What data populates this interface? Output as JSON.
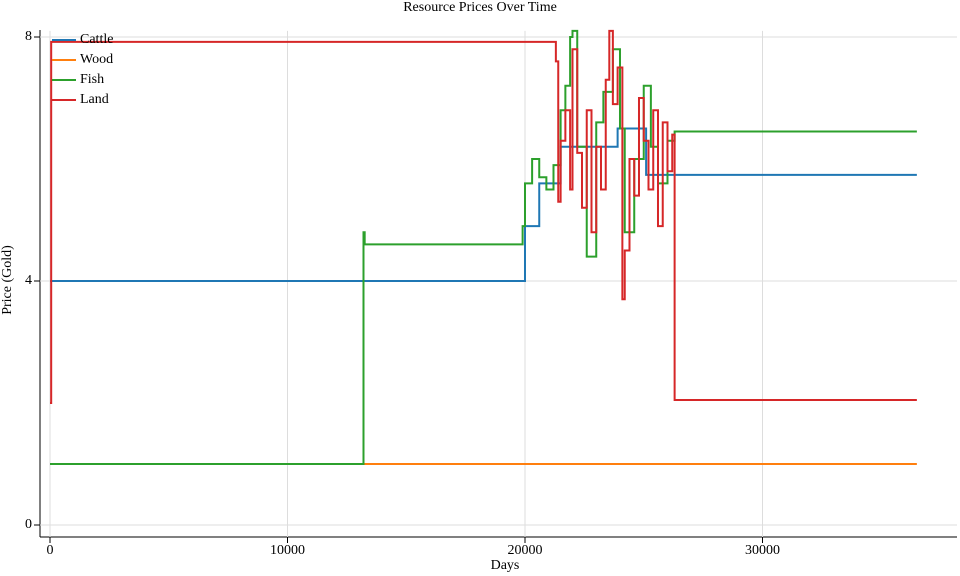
{
  "chart_data": {
    "type": "line",
    "step": "post",
    "grid": true,
    "legend": "top-left",
    "title": "Resource Prices Over Time",
    "x_label": "Days",
    "y_label": "Price (Gold)",
    "xlim": [
      0,
      38190
    ],
    "ylim": [
      0,
      8.1
    ],
    "xticks": [
      0,
      10000,
      20000,
      30000
    ],
    "yticks": [
      0,
      4,
      8
    ],
    "series": [
      {
        "name": "Cattle",
        "color": "#1f77b4",
        "x": [
          0,
          20000,
          20600,
          21500,
          23900,
          25100,
          36500
        ],
        "values": [
          4,
          4.9,
          5.6,
          6.2,
          6.5,
          5.74,
          5.74
        ]
      },
      {
        "name": "Wood",
        "color": "#ff7f0e",
        "x": [
          0,
          36500
        ],
        "values": [
          1,
          1
        ]
      },
      {
        "name": "Fish",
        "color": "#2ca02c",
        "x": [
          0,
          13200,
          13250,
          19900,
          20000,
          20300,
          20600,
          20900,
          21200,
          21500,
          21700,
          21900,
          22000,
          22200,
          22600,
          23000,
          23300,
          23700,
          24000,
          24200,
          24600,
          25000,
          25300,
          25600,
          26000,
          26300,
          36500
        ],
        "values": [
          1,
          4.8,
          4.6,
          4.9,
          5.6,
          6.0,
          5.7,
          5.5,
          5.9,
          6.8,
          7.2,
          8.0,
          8.1,
          6.2,
          4.4,
          6.6,
          7.1,
          7.8,
          6.5,
          4.8,
          6.0,
          7.2,
          6.2,
          5.6,
          6.3,
          6.45,
          6.45
        ]
      },
      {
        "name": "Land",
        "color": "#d62728",
        "x": [
          0,
          50,
          21300,
          21400,
          21500,
          21700,
          21900,
          22000,
          22200,
          22400,
          22600,
          22800,
          23000,
          23200,
          23400,
          23550,
          23700,
          23900,
          24100,
          24200,
          24400,
          24600,
          24800,
          25000,
          25200,
          25400,
          25600,
          25800,
          26000,
          26200,
          26300,
          36500
        ],
        "values": [
          2,
          7.92,
          7.6,
          5.3,
          6.3,
          6.8,
          5.5,
          7.8,
          6.1,
          5.2,
          6.8,
          4.8,
          6.2,
          5.5,
          7.3,
          8.1,
          6.9,
          7.5,
          3.7,
          4.5,
          6.0,
          5.4,
          7.0,
          6.3,
          5.5,
          6.8,
          4.9,
          6.6,
          5.8,
          6.4,
          2.05,
          2.05
        ]
      }
    ]
  }
}
